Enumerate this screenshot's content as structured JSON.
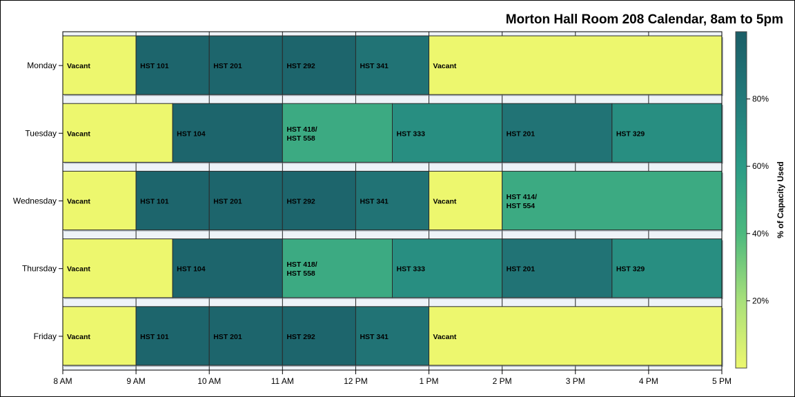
{
  "chart_data": {
    "type": "bar",
    "orientation": "horizontal",
    "subtype": "calendar-timeline",
    "title": "Morton Hall Room 208 Calendar, 8am to 5pm",
    "xlabel": "",
    "ylabel": "",
    "xlim": [
      8,
      17
    ],
    "x_ticks": [
      8,
      9,
      10,
      11,
      12,
      13,
      14,
      15,
      16,
      17
    ],
    "x_tick_labels": [
      "8 AM",
      "9 AM",
      "10 AM",
      "11 AM",
      "12 PM",
      "1 PM",
      "2 PM",
      "3 PM",
      "4 PM",
      "5 PM"
    ],
    "categories": [
      "Monday",
      "Tuesday",
      "Wednesday",
      "Thursday",
      "Friday"
    ],
    "grid": true,
    "colorbar": {
      "title": "% of Capacity Used",
      "range": [
        0,
        100
      ],
      "ticks": [
        20,
        40,
        60,
        80
      ],
      "tick_labels": [
        "20%",
        "40%",
        "60%",
        "80%"
      ],
      "stops": [
        "#edf76e",
        "#a8e07a",
        "#4cb97e",
        "#2b9b86",
        "#237a7a",
        "#1b5e67"
      ]
    },
    "rows": [
      {
        "day": "Monday",
        "segments": [
          {
            "start": 8,
            "end": 9,
            "label": [
              "Vacant"
            ],
            "capacity": 0
          },
          {
            "start": 9,
            "end": 10,
            "label": [
              "HST 101"
            ],
            "capacity": 95
          },
          {
            "start": 10,
            "end": 11,
            "label": [
              "HST 201"
            ],
            "capacity": 95
          },
          {
            "start": 11,
            "end": 12,
            "label": [
              "HST 292"
            ],
            "capacity": 95
          },
          {
            "start": 12,
            "end": 13,
            "label": [
              "HST 341"
            ],
            "capacity": 85
          },
          {
            "start": 13,
            "end": 17,
            "label": [
              "Vacant"
            ],
            "capacity": 0
          }
        ]
      },
      {
        "day": "Tuesday",
        "segments": [
          {
            "start": 8,
            "end": 9.5,
            "label": [
              "Vacant"
            ],
            "capacity": 0
          },
          {
            "start": 9.5,
            "end": 11,
            "label": [
              "HST 104"
            ],
            "capacity": 95
          },
          {
            "start": 11,
            "end": 12.5,
            "label": [
              "HST 418/",
              "HST 558"
            ],
            "capacity": 50
          },
          {
            "start": 12.5,
            "end": 14,
            "label": [
              "HST 333"
            ],
            "capacity": 68
          },
          {
            "start": 14,
            "end": 15.5,
            "label": [
              "HST 201"
            ],
            "capacity": 85
          },
          {
            "start": 15.5,
            "end": 17,
            "label": [
              "HST 329"
            ],
            "capacity": 68
          }
        ]
      },
      {
        "day": "Wednesday",
        "segments": [
          {
            "start": 8,
            "end": 9,
            "label": [
              "Vacant"
            ],
            "capacity": 0
          },
          {
            "start": 9,
            "end": 10,
            "label": [
              "HST 101"
            ],
            "capacity": 95
          },
          {
            "start": 10,
            "end": 11,
            "label": [
              "HST 201"
            ],
            "capacity": 95
          },
          {
            "start": 11,
            "end": 12,
            "label": [
              "HST 292"
            ],
            "capacity": 95
          },
          {
            "start": 12,
            "end": 13,
            "label": [
              "HST 341"
            ],
            "capacity": 85
          },
          {
            "start": 13,
            "end": 14,
            "label": [
              "Vacant"
            ],
            "capacity": 0
          },
          {
            "start": 14,
            "end": 17,
            "label": [
              "HST 414/",
              "HST 554"
            ],
            "capacity": 50
          }
        ]
      },
      {
        "day": "Thursday",
        "segments": [
          {
            "start": 8,
            "end": 9.5,
            "label": [
              "Vacant"
            ],
            "capacity": 0
          },
          {
            "start": 9.5,
            "end": 11,
            "label": [
              "HST 104"
            ],
            "capacity": 95
          },
          {
            "start": 11,
            "end": 12.5,
            "label": [
              "HST 418/",
              "HST 558"
            ],
            "capacity": 50
          },
          {
            "start": 12.5,
            "end": 14,
            "label": [
              "HST 333"
            ],
            "capacity": 68
          },
          {
            "start": 14,
            "end": 15.5,
            "label": [
              "HST 201"
            ],
            "capacity": 85
          },
          {
            "start": 15.5,
            "end": 17,
            "label": [
              "HST 329"
            ],
            "capacity": 68
          }
        ]
      },
      {
        "day": "Friday",
        "segments": [
          {
            "start": 8,
            "end": 9,
            "label": [
              "Vacant"
            ],
            "capacity": 0
          },
          {
            "start": 9,
            "end": 10,
            "label": [
              "HST 101"
            ],
            "capacity": 95
          },
          {
            "start": 10,
            "end": 11,
            "label": [
              "HST 201"
            ],
            "capacity": 95
          },
          {
            "start": 11,
            "end": 12,
            "label": [
              "HST 292"
            ],
            "capacity": 95
          },
          {
            "start": 12,
            "end": 13,
            "label": [
              "HST 341"
            ],
            "capacity": 85
          },
          {
            "start": 13,
            "end": 17,
            "label": [
              "Vacant"
            ],
            "capacity": 0
          }
        ]
      }
    ]
  }
}
